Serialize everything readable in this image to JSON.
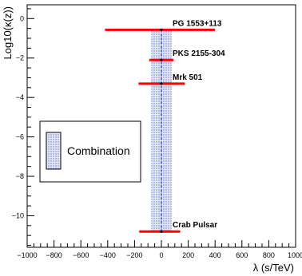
{
  "chart_data": {
    "type": "scatter",
    "xlabel": "λ (s/TeV)",
    "ylabel": "Log10(κ(z))",
    "xlim": [
      -1000,
      1000
    ],
    "ylim": [
      -11.6,
      0.7
    ],
    "x_ticks": [
      -1000,
      -800,
      -600,
      -400,
      -200,
      0,
      200,
      400,
      600,
      800,
      1000
    ],
    "y_ticks": [
      0,
      -2,
      -4,
      -6,
      -8,
      -10
    ],
    "sources": [
      {
        "label": "PG 1553+113",
        "log_kappa": -0.57,
        "lambda": 0,
        "lambda_low": -420,
        "lambda_high": 400
      },
      {
        "label": "PKS 2155-304",
        "log_kappa": -2.1,
        "lambda": 0,
        "lambda_low": -90,
        "lambda_high": 90
      },
      {
        "label": "Mrk 501",
        "log_kappa": -3.3,
        "lambda": 0,
        "lambda_low": -170,
        "lambda_high": 175
      },
      {
        "label": "Crab Pulsar",
        "log_kappa": -10.8,
        "lambda": 0,
        "lambda_low": -165,
        "lambda_high": 140
      }
    ],
    "combination": {
      "lambda_low": -75,
      "lambda_high": 75,
      "lambda_center": 0
    },
    "legend": {
      "label": "Combination",
      "position": "middle-left"
    },
    "colors": {
      "bars": "#ff0000",
      "combination_line": "#3a4fd8",
      "combination_fill": "#b8c2f0",
      "points": "#000000"
    }
  }
}
